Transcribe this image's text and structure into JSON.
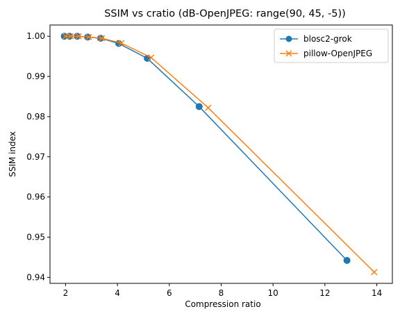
{
  "chart_data": {
    "type": "line",
    "title": "SSIM vs cratio (dB-OpenJPEG: range(90, 45, -5))",
    "xlabel": "Compression ratio",
    "ylabel": "SSIM index",
    "xlim": [
      1.4,
      14.6
    ],
    "ylim": [
      0.9385,
      1.0028
    ],
    "xticks": [
      2,
      4,
      6,
      8,
      10,
      12,
      14
    ],
    "yticks": [
      0.94,
      0.95,
      0.96,
      0.97,
      0.98,
      0.99,
      1.0
    ],
    "ytick_labels": [
      "0.94",
      "0.95",
      "0.96",
      "0.97",
      "0.98",
      "0.99",
      "1.00"
    ],
    "grid": false,
    "legend": "top-right",
    "series": [
      {
        "name": "blosc2-grok",
        "color": "#1f77b4",
        "marker": "circle",
        "x": [
          1.95,
          2.15,
          2.45,
          2.85,
          3.35,
          4.05,
          5.15,
          7.15,
          12.85
        ],
        "y": [
          1.0,
          1.0,
          1.0,
          0.9998,
          0.9995,
          0.9982,
          0.9945,
          0.9825,
          0.9442
        ]
      },
      {
        "name": "pillow-OpenJPEG",
        "color": "#ff7f0e",
        "marker": "x",
        "x": [
          2.0,
          2.2,
          2.5,
          2.9,
          3.4,
          4.15,
          5.3,
          7.5,
          13.9
        ],
        "y": [
          1.0,
          1.0,
          1.0,
          0.9998,
          0.9995,
          0.9983,
          0.9947,
          0.9822,
          0.9413
        ]
      }
    ]
  }
}
